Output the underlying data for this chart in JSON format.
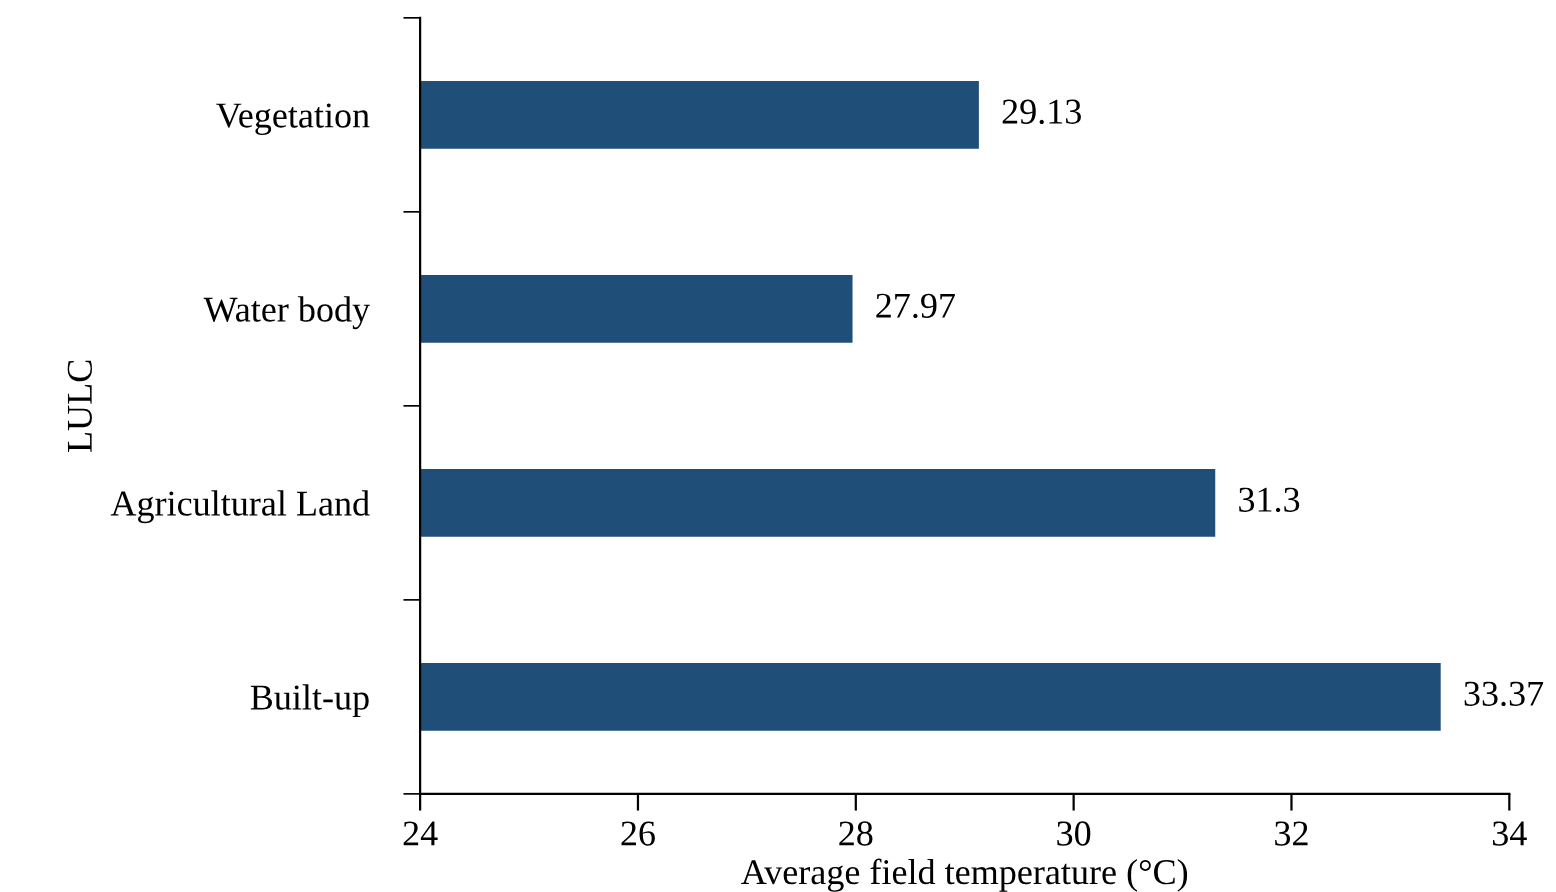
{
  "chart_data": {
    "type": "bar",
    "orientation": "horizontal",
    "xlabel": "Average field temperature (°C)",
    "ylabel": "LULC",
    "categories": [
      "Vegetation",
      "Water body",
      "Agricultural Land",
      "Built-up"
    ],
    "values": [
      29.13,
      27.97,
      31.3,
      33.37
    ],
    "color": "#1f4e79",
    "xlim": [
      24,
      34
    ],
    "xticks": [
      24,
      26,
      28,
      30,
      32,
      34
    ],
    "data_labels": true,
    "grid": false,
    "legend": false
  }
}
